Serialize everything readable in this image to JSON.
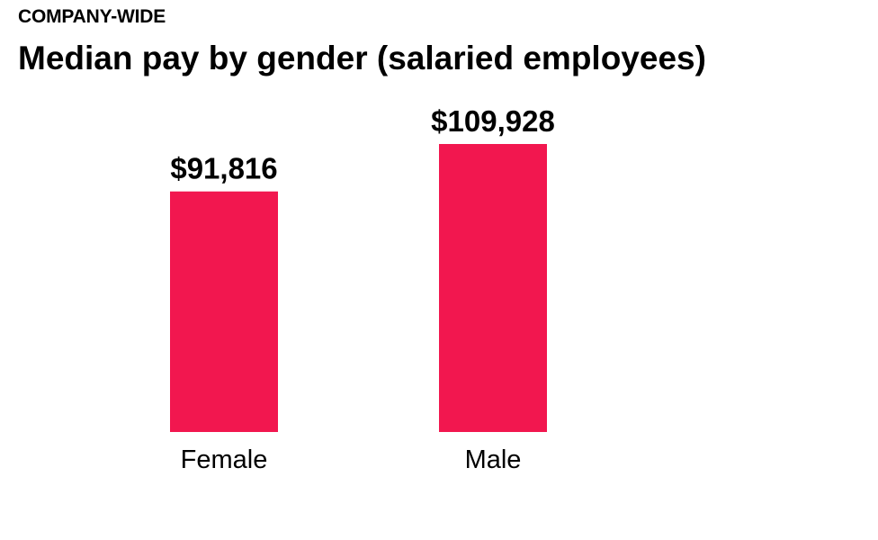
{
  "header": {
    "kicker": "COMPANY-WIDE",
    "title": "Median pay by gender (salaried employees)"
  },
  "colors": {
    "bar": "#f2174f",
    "text": "#000000"
  },
  "chart_data": {
    "type": "bar",
    "title": "Median pay by gender (salaried employees)",
    "subtitle": "COMPANY-WIDE",
    "categories": [
      "Female",
      "Male"
    ],
    "values": [
      91816,
      109928
    ],
    "value_labels": [
      "$91,816",
      "$109,928"
    ],
    "xlabel": "",
    "ylabel": "",
    "ylim": [
      0,
      109928
    ],
    "grid": false,
    "legend": "none"
  }
}
